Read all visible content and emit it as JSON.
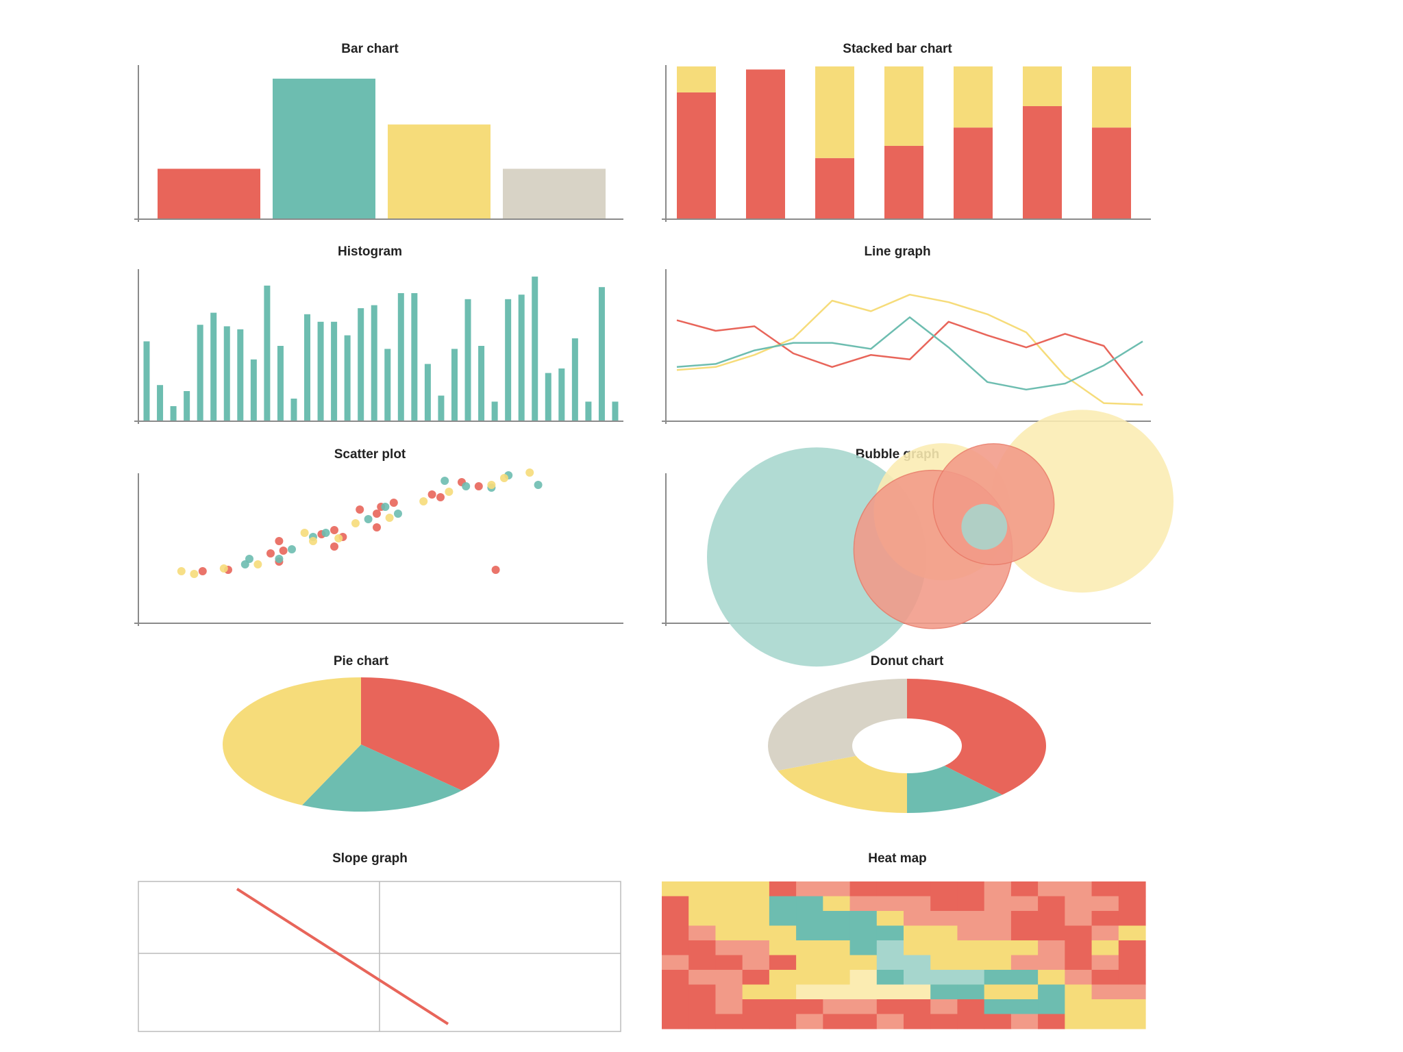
{
  "colors": {
    "red": "#e8655a",
    "teal": "#6dbdb0",
    "yellow": "#f6dc7a",
    "gray": "#d8d3c6",
    "salmon": "#f29a88",
    "pale_yellow": "#fbecb2",
    "pale_teal": "#a6d6cd",
    "axis": "#8a8a8a",
    "grid": "#bcbcbc"
  },
  "chart_data": [
    {
      "type": "bar",
      "title": "Bar chart",
      "categories": [
        "",
        "",
        "",
        ""
      ],
      "values": [
        33,
        92,
        62,
        33
      ],
      "colors": [
        "red",
        "teal",
        "yellow",
        "gray"
      ],
      "ylim": [
        0,
        100
      ]
    },
    {
      "type": "bar",
      "stacked": true,
      "title": "Stacked bar chart",
      "categories": [
        "",
        "",
        "",
        "",
        "",
        "",
        ""
      ],
      "series": [
        {
          "values": [
            83,
            98,
            40,
            48,
            60,
            74,
            60
          ],
          "color": "red"
        },
        {
          "values": [
            17,
            0,
            60,
            52,
            40,
            26,
            40
          ],
          "color": "yellow"
        }
      ],
      "ylim": [
        0,
        100
      ]
    },
    {
      "type": "bar",
      "title": "Histogram",
      "values": [
        53,
        24,
        10,
        20,
        64,
        72,
        63,
        61,
        41,
        90,
        50,
        15,
        71,
        66,
        66,
        57,
        75,
        77,
        48,
        85,
        85,
        38,
        17,
        48,
        81,
        50,
        13,
        81,
        84,
        96,
        32,
        35,
        55,
        13,
        89,
        13
      ],
      "color": "teal",
      "ylim": [
        0,
        100
      ]
    },
    {
      "type": "line",
      "title": "Line graph",
      "x": [
        0,
        1,
        2,
        3,
        4,
        5,
        6,
        7,
        8,
        9,
        10,
        11,
        12
      ],
      "series": [
        {
          "values": [
            34,
            36,
            44,
            55,
            80,
            73,
            84,
            79,
            71,
            59,
            30,
            12,
            11
          ],
          "color": "yellow"
        },
        {
          "values": [
            67,
            60,
            63,
            45,
            36,
            44,
            41,
            66,
            57,
            49,
            58,
            50,
            17
          ],
          "color": "red"
        },
        {
          "values": [
            36,
            38,
            47,
            52,
            52,
            48,
            69,
            49,
            26,
            21,
            25,
            37,
            53
          ],
          "color": "teal"
        }
      ],
      "ylim": [
        0,
        100
      ]
    },
    {
      "type": "scatter",
      "title": "Scatter plot",
      "series": [
        {
          "color": "red",
          "points": [
            [
              9,
              23
            ],
            [
              15,
              24
            ],
            [
              25,
              36
            ],
            [
              27,
              30
            ],
            [
              28,
              38
            ],
            [
              37,
              50
            ],
            [
              40,
              53
            ],
            [
              42,
              48
            ],
            [
              46,
              68
            ],
            [
              50,
              65
            ],
            [
              51,
              70
            ],
            [
              54,
              73
            ],
            [
              63,
              79
            ],
            [
              65,
              77
            ],
            [
              74,
              85
            ],
            [
              27,
              45
            ],
            [
              40,
              41
            ],
            [
              50,
              55
            ],
            [
              78,
              24
            ],
            [
              70,
              88
            ]
          ]
        },
        {
          "color": "teal",
          "points": [
            [
              19,
              28
            ],
            [
              20,
              32
            ],
            [
              27,
              32
            ],
            [
              30,
              39
            ],
            [
              35,
              48
            ],
            [
              48,
              61
            ],
            [
              55,
              65
            ],
            [
              66,
              89
            ],
            [
              71,
              85
            ],
            [
              77,
              84
            ],
            [
              81,
              93
            ],
            [
              88,
              86
            ],
            [
              52,
              70
            ],
            [
              38,
              51
            ]
          ]
        },
        {
          "color": "yellow",
          "points": [
            [
              4,
              23
            ],
            [
              7,
              21
            ],
            [
              14,
              25
            ],
            [
              22,
              28
            ],
            [
              33,
              51
            ],
            [
              45,
              58
            ],
            [
              53,
              62
            ],
            [
              61,
              74
            ],
            [
              67,
              81
            ],
            [
              77,
              86
            ],
            [
              80,
              91
            ],
            [
              86,
              95
            ],
            [
              35,
              45
            ],
            [
              41,
              47
            ]
          ]
        }
      ],
      "xlim": [
        0,
        100
      ],
      "ylim": [
        0,
        100
      ]
    },
    {
      "type": "scatter",
      "bubble": true,
      "title": "Bubble graph",
      "bubbles": [
        {
          "x": 30,
          "y": 44,
          "size": 23,
          "color": "pale_teal"
        },
        {
          "x": 87,
          "y": 81,
          "size": 16,
          "color": "pale_yellow"
        },
        {
          "x": 57,
          "y": 74,
          "size": 9,
          "color": "pale_yellow"
        },
        {
          "x": 55,
          "y": 49,
          "size": 12,
          "color": "salmon"
        },
        {
          "x": 68,
          "y": 79,
          "size": 7,
          "color": "salmon"
        },
        {
          "x": 66,
          "y": 64,
          "size": 1,
          "color": "pale_teal"
        }
      ],
      "xlim": [
        0,
        100
      ],
      "ylim": [
        0,
        100
      ]
    },
    {
      "type": "pie",
      "title": "Pie chart",
      "slices": [
        {
          "value": 37,
          "color": "red"
        },
        {
          "value": 20,
          "color": "teal"
        },
        {
          "value": 43,
          "color": "yellow"
        }
      ]
    },
    {
      "type": "pie",
      "donut": true,
      "title": "Donut chart",
      "slices": [
        {
          "value": 38,
          "color": "red"
        },
        {
          "value": 12,
          "color": "teal"
        },
        {
          "value": 19,
          "color": "yellow"
        },
        {
          "value": 31,
          "color": "gray"
        }
      ]
    },
    {
      "type": "line",
      "title": "Slope graph",
      "x": [
        0,
        1
      ],
      "series": [
        {
          "values": [
            95,
            5
          ],
          "color": "red"
        }
      ],
      "ylim": [
        0,
        100
      ]
    },
    {
      "type": "heatmap",
      "title": "Heat map",
      "palette": [
        "red",
        "salmon",
        "yellow",
        "teal",
        "pale_teal",
        "pale_yellow"
      ],
      "matrix": [
        [
          2,
          2,
          2,
          2,
          0,
          1,
          1,
          0,
          0,
          0,
          0,
          0,
          1,
          0,
          1,
          1,
          0,
          0
        ],
        [
          0,
          2,
          2,
          2,
          3,
          3,
          2,
          1,
          1,
          1,
          0,
          0,
          1,
          1,
          0,
          1,
          1,
          0
        ],
        [
          0,
          2,
          2,
          2,
          3,
          3,
          3,
          3,
          2,
          1,
          1,
          1,
          1,
          0,
          0,
          1,
          0,
          0
        ],
        [
          0,
          1,
          2,
          2,
          2,
          3,
          3,
          3,
          3,
          2,
          2,
          1,
          1,
          0,
          0,
          0,
          1,
          2
        ],
        [
          0,
          0,
          1,
          1,
          2,
          2,
          2,
          3,
          4,
          2,
          2,
          2,
          2,
          2,
          1,
          0,
          2,
          0
        ],
        [
          1,
          0,
          0,
          1,
          0,
          2,
          2,
          2,
          4,
          4,
          2,
          2,
          2,
          1,
          1,
          0,
          1,
          0
        ],
        [
          0,
          1,
          1,
          0,
          2,
          2,
          2,
          5,
          3,
          4,
          4,
          4,
          3,
          3,
          2,
          1,
          0,
          0
        ],
        [
          0,
          0,
          1,
          2,
          2,
          5,
          5,
          5,
          5,
          5,
          3,
          3,
          2,
          2,
          3,
          2,
          1,
          1
        ],
        [
          0,
          0,
          1,
          0,
          0,
          0,
          1,
          1,
          0,
          0,
          1,
          0,
          3,
          3,
          3,
          2,
          2,
          2
        ],
        [
          0,
          0,
          0,
          0,
          0,
          1,
          0,
          0,
          1,
          0,
          0,
          0,
          0,
          1,
          0,
          2,
          2,
          2
        ]
      ]
    }
  ]
}
